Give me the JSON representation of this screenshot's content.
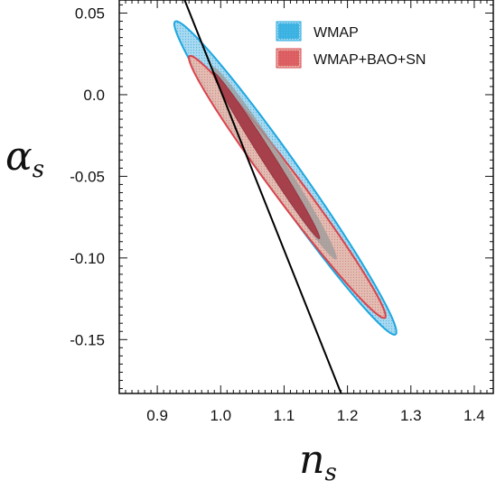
{
  "chart_data": {
    "type": "contour",
    "title": "",
    "xlabel": "n",
    "xlabel_sub": "s",
    "ylabel": "α",
    "ylabel_sub": "s",
    "xlim": [
      0.84,
      1.43
    ],
    "ylim": [
      -0.183,
      0.058
    ],
    "xticks": [
      0.9,
      1.0,
      1.1,
      1.2,
      1.3,
      1.4
    ],
    "xtick_labels": [
      "0.9",
      "1.0",
      "1.1",
      "1.2",
      "1.3",
      "1.4"
    ],
    "yticks": [
      0.05,
      0.0,
      -0.05,
      -0.1,
      -0.15
    ],
    "ytick_labels": [
      "0.05",
      "0.0",
      "-0.05",
      "-0.10",
      "-0.15"
    ],
    "legend_position": "top-right",
    "series": [
      {
        "name": "WMAP",
        "color": "#1ea7df",
        "fill": "#a9d9f0",
        "contours": [
          {
            "level": "95%",
            "center": [
              1.102,
              -0.051
            ],
            "semi_major": [
              0.175,
              -0.095
            ],
            "semi_minor": [
              -0.0075,
              -0.0138
            ]
          }
        ]
      },
      {
        "name": "WMAP+BAO+SN",
        "color": "#d9434c",
        "fill": "#e8b5a8",
        "contours": [
          {
            "level": "95%",
            "center": [
              1.105,
              -0.0565
            ],
            "semi_major": [
              0.155,
              -0.0795
            ],
            "semi_minor": [
              -0.0058,
              -0.0113
            ]
          },
          {
            "level": "68%",
            "center": [
              1.072,
              -0.0372
            ],
            "semi_major": [
              0.084,
              -0.0507
            ],
            "semi_minor": [
              -0.003,
              -0.005
            ]
          }
        ]
      }
    ],
    "overlay_region": {
      "color": "#9a9a9a",
      "center": [
        1.085,
        -0.042
      ],
      "semi_major": [
        0.098,
        -0.0585
      ],
      "semi_minor": [
        -0.0046,
        -0.0076
      ]
    },
    "line": {
      "color": "#000000",
      "points": [
        [
          0.94,
          0.061
        ],
        [
          1.19,
          -0.183
        ]
      ]
    }
  }
}
